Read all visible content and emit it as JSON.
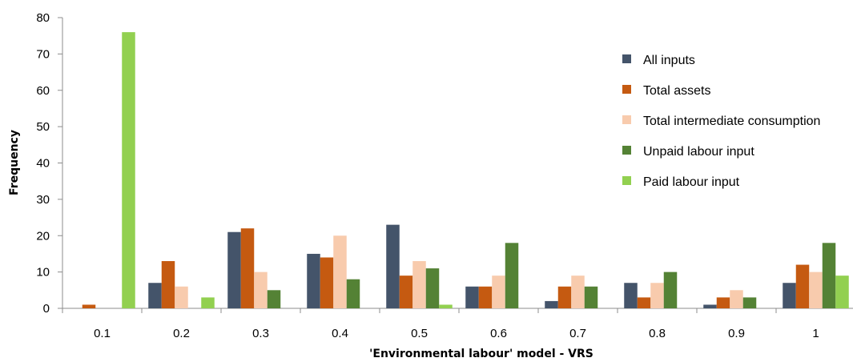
{
  "chart_data": {
    "type": "bar",
    "title": "",
    "xlabel": "'Environmental labour' model - VRS",
    "ylabel": "Frequency",
    "ylim": [
      0,
      80
    ],
    "yticks": [
      0,
      10,
      20,
      30,
      40,
      50,
      60,
      70,
      80
    ],
    "categories": [
      "0.1",
      "0.2",
      "0.3",
      "0.4",
      "0.5",
      "0.6",
      "0.7",
      "0.8",
      "0.9",
      "1"
    ],
    "legend_position": "top-right",
    "grid": false,
    "series": [
      {
        "name": "All inputs",
        "color": "#44546a",
        "values": [
          0,
          7,
          21,
          15,
          23,
          6,
          2,
          7,
          1,
          7
        ]
      },
      {
        "name": "Total assets",
        "color": "#c55a11",
        "values": [
          1,
          13,
          22,
          14,
          9,
          6,
          6,
          3,
          3,
          12
        ]
      },
      {
        "name": "Total intermediate consumption",
        "color": "#f8cbad",
        "values": [
          0,
          6,
          10,
          20,
          13,
          9,
          9,
          7,
          5,
          10
        ]
      },
      {
        "name": "Unpaid labour input",
        "color": "#548235",
        "values": [
          0,
          0,
          5,
          8,
          11,
          18,
          6,
          10,
          3,
          18
        ]
      },
      {
        "name": "Paid labour input",
        "color": "#92d050",
        "values": [
          76,
          3,
          0,
          0,
          1,
          0,
          0,
          0,
          0,
          9
        ]
      }
    ]
  }
}
